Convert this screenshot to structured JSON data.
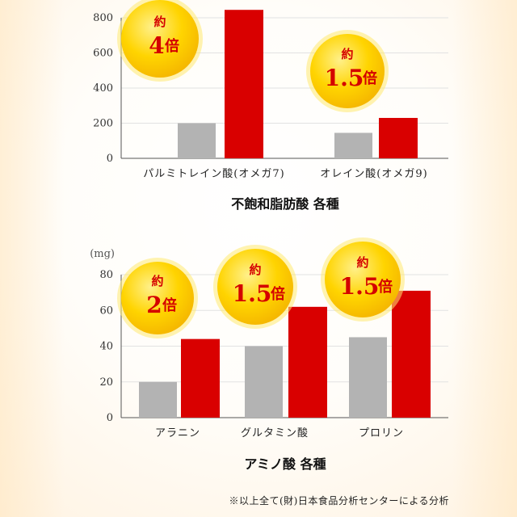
{
  "theme": {
    "gray": "#b3b3b3",
    "red": "#d90000",
    "badge_fill": "#ffd400",
    "badge_edge": "#ffea71",
    "badge_text": "#d40000"
  },
  "chart_data": [
    {
      "type": "bar",
      "title": "不飽和脂肪酸 各種",
      "unit_label": "",
      "categories": [
        "パルミトレイン酸(オメガ7)",
        "オレイン酸(オメガ9)"
      ],
      "ylim": [
        0,
        800
      ],
      "yticks": [
        "0",
        "200",
        "400",
        "600",
        "800"
      ],
      "grid": true,
      "series": [
        {
          "color": "#b3b3b3",
          "values": [
            200,
            145
          ]
        },
        {
          "color": "#d90000",
          "values": [
            845,
            230
          ]
        }
      ],
      "badges": [
        {
          "top": "約",
          "main": "4",
          "suffix": "倍"
        },
        {
          "top": "約",
          "main": "1.5",
          "suffix": "倍"
        }
      ]
    },
    {
      "type": "bar",
      "title": "アミノ酸 各種",
      "unit_label": "(mg)",
      "categories": [
        "アラニン",
        "グルタミン酸",
        "プロリン"
      ],
      "ylim": [
        0,
        80
      ],
      "yticks": [
        "0",
        "20",
        "40",
        "60",
        "80"
      ],
      "grid": true,
      "series": [
        {
          "color": "#b3b3b3",
          "values": [
            20,
            40,
            45
          ]
        },
        {
          "color": "#d90000",
          "values": [
            44,
            62,
            71
          ]
        }
      ],
      "badges": [
        {
          "top": "約",
          "main": "2",
          "suffix": "倍"
        },
        {
          "top": "約",
          "main": "1.5",
          "suffix": "倍"
        },
        {
          "top": "約",
          "main": "1.5",
          "suffix": "倍"
        }
      ]
    }
  ],
  "footnote": "※以上全て(財)日本食品分析センターによる分析"
}
